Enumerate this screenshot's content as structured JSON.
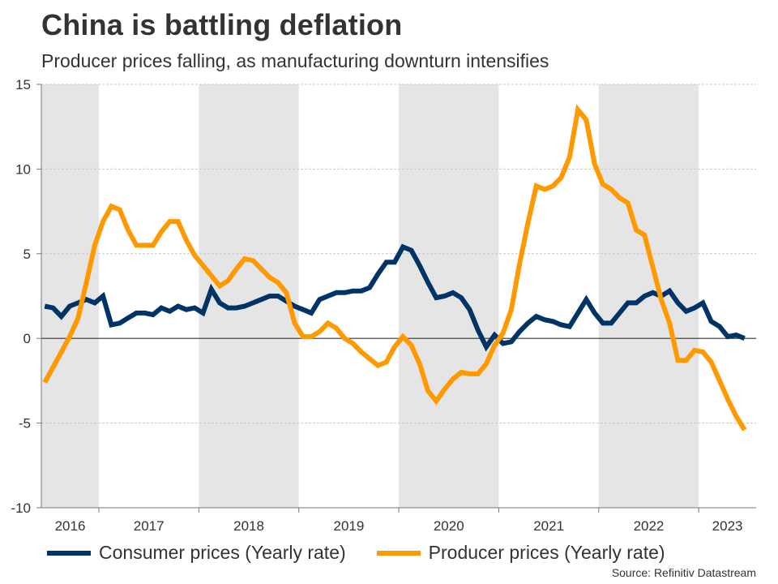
{
  "header": {
    "title": "China is battling deflation",
    "subtitle": "Producer prices falling, as manufacturing downturn intensifies"
  },
  "source": "Source: Refinitiv Datastream",
  "colors": {
    "consumer": "#003366",
    "producer": "#ff9900",
    "shade": "#e5e5e5",
    "grid": "#c8c8c8",
    "axis": "#777777",
    "zero_line": "#333333"
  },
  "chart_data": {
    "type": "line",
    "title": "China is battling deflation",
    "subtitle": "Producer prices falling, as manufacturing downturn intensifies",
    "xlabel": "",
    "ylabel": "",
    "ylim": [
      -10,
      15
    ],
    "yticks": [
      15,
      10,
      5,
      0,
      -5,
      -10
    ],
    "grid": true,
    "legend_position": "bottom",
    "x_start": "2016-06",
    "x_end": "2023-06",
    "x_frequency": "monthly",
    "year_labels": [
      "2016",
      "2017",
      "2018",
      "2019",
      "2020",
      "2021",
      "2022",
      "2023"
    ],
    "shaded_years": [
      "2016",
      "2018",
      "2020",
      "2022"
    ],
    "series": [
      {
        "name": "Consumer prices (Yearly rate)",
        "color": "#003366",
        "values": [
          1.9,
          1.8,
          1.3,
          1.9,
          2.1,
          2.3,
          2.1,
          2.5,
          0.8,
          0.9,
          1.2,
          1.5,
          1.5,
          1.4,
          1.8,
          1.6,
          1.9,
          1.7,
          1.8,
          1.5,
          2.9,
          2.1,
          1.8,
          1.8,
          1.9,
          2.1,
          2.3,
          2.5,
          2.5,
          2.2,
          1.9,
          1.7,
          1.5,
          2.3,
          2.5,
          2.7,
          2.7,
          2.8,
          2.8,
          3.0,
          3.8,
          4.5,
          4.5,
          5.4,
          5.2,
          4.3,
          3.3,
          2.4,
          2.5,
          2.7,
          2.4,
          1.7,
          0.5,
          -0.5,
          0.2,
          -0.3,
          -0.2,
          0.4,
          0.9,
          1.3,
          1.1,
          1.0,
          0.8,
          0.7,
          1.5,
          2.3,
          1.5,
          0.9,
          0.9,
          1.5,
          2.1,
          2.1,
          2.5,
          2.7,
          2.5,
          2.8,
          2.1,
          1.6,
          1.8,
          2.1,
          1.0,
          0.7,
          0.1,
          0.2,
          0.0
        ]
      },
      {
        "name": "Producer prices (Yearly rate)",
        "color": "#ff9900",
        "values": [
          -2.6,
          -1.7,
          -0.8,
          0.1,
          1.2,
          3.3,
          5.5,
          6.9,
          7.8,
          7.6,
          6.4,
          5.5,
          5.5,
          5.5,
          6.3,
          6.9,
          6.9,
          5.8,
          4.9,
          4.3,
          3.7,
          3.1,
          3.4,
          4.1,
          4.7,
          4.6,
          4.1,
          3.6,
          3.3,
          2.7,
          0.9,
          0.1,
          0.1,
          0.4,
          0.9,
          0.6,
          0.0,
          -0.3,
          -0.8,
          -1.2,
          -1.6,
          -1.4,
          -0.5,
          0.1,
          -0.4,
          -1.5,
          -3.1,
          -3.7,
          -3.0,
          -2.4,
          -2.0,
          -2.1,
          -2.1,
          -1.5,
          -0.4,
          0.3,
          1.7,
          4.4,
          6.8,
          9.0,
          8.8,
          9.0,
          9.5,
          10.7,
          13.5,
          12.9,
          10.3,
          9.1,
          8.8,
          8.3,
          8.0,
          6.4,
          6.1,
          4.2,
          2.3,
          0.9,
          -1.3,
          -1.3,
          -0.7,
          -0.8,
          -1.4,
          -2.5,
          -3.6,
          -4.6,
          -5.4
        ]
      }
    ]
  }
}
